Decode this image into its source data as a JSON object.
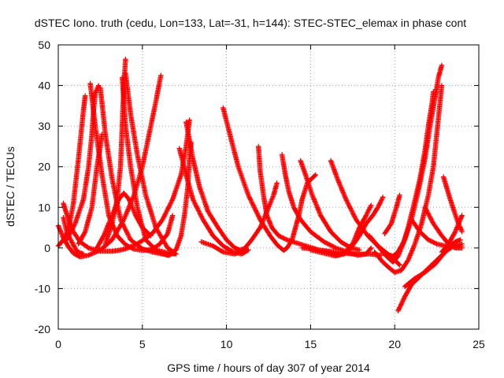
{
  "chart_data": {
    "type": "scatter",
    "title": "dSTEC Iono. truth (cedu, Lon=133, Lat=-31, h=144): STEC-STEC_elemax in phase cont",
    "xlabel": "GPS time / hours of day 307 of year 2014",
    "ylabel": "dSTEC  / TECUs",
    "xlim": [
      0,
      25
    ],
    "ylim": [
      -20,
      50
    ],
    "xticks": [
      "0",
      "5",
      "10",
      "15",
      "20",
      "25"
    ],
    "yticks": [
      "-20",
      "-10",
      "0",
      "10",
      "20",
      "30",
      "40",
      "50"
    ],
    "grid": true,
    "marker": "+",
    "color": "#ff0000",
    "series": [
      {
        "points": [
          [
            0.0,
            5.5
          ],
          [
            0.3,
            2.5
          ],
          [
            0.6,
            0.3
          ],
          [
            0.9,
            -1.3
          ],
          [
            1.3,
            -2.2
          ],
          [
            1.8,
            -1.8
          ],
          [
            2.5,
            -0.5
          ],
          [
            3.2,
            2
          ],
          [
            3.9,
            7
          ],
          [
            4.5,
            13
          ],
          [
            5.0,
            20
          ],
          [
            5.4,
            28
          ],
          [
            5.8,
            36
          ],
          [
            6.1,
            42.5
          ]
        ]
      },
      {
        "points": [
          [
            0.0,
            0.5
          ],
          [
            0.3,
            2
          ],
          [
            0.6,
            4.5
          ],
          [
            0.9,
            11
          ],
          [
            1.2,
            22
          ],
          [
            1.5,
            34
          ],
          [
            1.6,
            37.5
          ]
        ]
      },
      {
        "points": [
          [
            0.3,
            11
          ],
          [
            0.6,
            7
          ],
          [
            0.9,
            4
          ],
          [
            1.3,
            1.5
          ],
          [
            1.8,
            0
          ],
          [
            2.5,
            -0.8
          ],
          [
            3.2,
            -0.8
          ],
          [
            3.6,
            -0.6
          ],
          [
            4.0,
            -0.2
          ],
          [
            4.5,
            0.6
          ],
          [
            5.0,
            1.8
          ],
          [
            5.6,
            3.6
          ],
          [
            6.2,
            7
          ],
          [
            6.8,
            12
          ],
          [
            7.3,
            18
          ],
          [
            7.6,
            25
          ],
          [
            7.8,
            31.5
          ]
        ]
      },
      {
        "points": [
          [
            0.3,
            7.5
          ],
          [
            0.5,
            4
          ],
          [
            0.8,
            1.5
          ],
          [
            1.1,
            -0.8
          ],
          [
            1.5,
            -1.5
          ]
        ]
      },
      {
        "points": [
          [
            0.5,
            2
          ],
          [
            1.0,
            6
          ],
          [
            1.5,
            12
          ],
          [
            1.8,
            20
          ],
          [
            2.0,
            28
          ],
          [
            2.1,
            34
          ],
          [
            2.2,
            38
          ],
          [
            2.4,
            40
          ]
        ]
      },
      {
        "points": [
          [
            1.2,
            1
          ],
          [
            1.6,
            4
          ],
          [
            2.0,
            10
          ],
          [
            2.3,
            20
          ],
          [
            2.5,
            25
          ],
          [
            2.6,
            28
          ]
        ]
      },
      {
        "points": [
          [
            1.9,
            40.5
          ],
          [
            2.2,
            30
          ],
          [
            2.6,
            18
          ],
          [
            3.0,
            8
          ],
          [
            3.5,
            3
          ],
          [
            4.0,
            0.8
          ],
          [
            4.5,
            -0.3
          ],
          [
            5.0,
            -0.6
          ],
          [
            5.5,
            -0.4
          ],
          [
            6.0,
            0.8
          ],
          [
            6.5,
            3.5
          ],
          [
            6.8,
            8
          ]
        ]
      },
      {
        "points": [
          [
            2.5,
            39.5
          ],
          [
            2.8,
            28
          ],
          [
            3.2,
            17
          ],
          [
            3.7,
            7
          ],
          [
            4.3,
            2
          ],
          [
            5.0,
            -0.2
          ],
          [
            5.6,
            -1
          ],
          [
            6.2,
            -1.5
          ],
          [
            6.6,
            -1.8
          ],
          [
            6.9,
            -1
          ]
        ]
      },
      {
        "points": [
          [
            2.3,
            0
          ],
          [
            2.7,
            3
          ],
          [
            3.2,
            8
          ],
          [
            3.6,
            12
          ],
          [
            3.9,
            13.5
          ],
          [
            4.2,
            12
          ],
          [
            4.6,
            8
          ],
          [
            5.0,
            5
          ],
          [
            5.5,
            3
          ]
        ]
      },
      {
        "points": [
          [
            2.8,
            1
          ],
          [
            3.2,
            6
          ],
          [
            3.5,
            12
          ],
          [
            3.7,
            20
          ],
          [
            3.8,
            30
          ],
          [
            3.9,
            40
          ],
          [
            4.0,
            46.5
          ]
        ]
      },
      {
        "points": [
          [
            3.8,
            42
          ],
          [
            4.0,
            30
          ],
          [
            4.3,
            20
          ],
          [
            4.7,
            10
          ],
          [
            5.2,
            2
          ],
          [
            5.8,
            -0.5
          ],
          [
            6.5,
            -1.2
          ],
          [
            6.9,
            -1.5
          ]
        ]
      },
      {
        "points": [
          [
            4.0,
            43
          ],
          [
            4.3,
            33
          ],
          [
            4.7,
            23
          ],
          [
            5.2,
            13
          ],
          [
            5.8,
            5
          ],
          [
            6.5,
            0
          ],
          [
            7.0,
            -1.5
          ]
        ]
      },
      {
        "points": [
          [
            5.6,
            -0.2
          ],
          [
            6.0,
            -1
          ],
          [
            6.5,
            -1.8
          ],
          [
            7.0,
            -0.5
          ],
          [
            7.3,
            3
          ],
          [
            7.5,
            8
          ],
          [
            7.7,
            15
          ],
          [
            7.8,
            22
          ],
          [
            7.9,
            26
          ]
        ]
      },
      {
        "points": [
          [
            7.2,
            24.5
          ],
          [
            7.6,
            18
          ],
          [
            8.0,
            12
          ],
          [
            8.6,
            7
          ],
          [
            9.2,
            3
          ],
          [
            9.8,
            0.5
          ],
          [
            10.4,
            -1
          ],
          [
            10.9,
            -1.5
          ],
          [
            11.3,
            -0.5
          ]
        ]
      },
      {
        "points": [
          [
            7.6,
            31
          ],
          [
            8.0,
            22
          ],
          [
            8.4,
            15
          ],
          [
            8.9,
            9
          ],
          [
            9.5,
            5
          ],
          [
            10.0,
            2
          ],
          [
            10.5,
            0
          ],
          [
            10.8,
            -0.5
          ],
          [
            11.0,
            -0.2
          ]
        ]
      },
      {
        "points": [
          [
            9.8,
            34.5
          ],
          [
            10.2,
            28
          ],
          [
            10.7,
            20
          ],
          [
            11.3,
            13
          ],
          [
            12.0,
            7
          ],
          [
            12.6,
            3
          ],
          [
            13.0,
            0.8
          ],
          [
            13.4,
            -0.6
          ],
          [
            13.6,
            0
          ],
          [
            13.9,
            2
          ],
          [
            14.1,
            5
          ],
          [
            14.3,
            8
          ],
          [
            14.5,
            12
          ],
          [
            14.8,
            16
          ],
          [
            15.3,
            18
          ]
        ]
      },
      {
        "points": [
          [
            8.5,
            1.5
          ],
          [
            9.2,
            0.5
          ],
          [
            9.8,
            -1
          ],
          [
            10.5,
            -1.5
          ],
          [
            11.0,
            -0.5
          ],
          [
            11.5,
            2
          ],
          [
            12.0,
            5
          ],
          [
            12.4,
            9
          ],
          [
            12.8,
            13
          ],
          [
            13.0,
            16
          ]
        ]
      },
      {
        "points": [
          [
            11.9,
            25
          ],
          [
            12.0,
            19
          ],
          [
            12.2,
            13
          ],
          [
            12.4,
            8
          ],
          [
            12.7,
            5
          ],
          [
            13.1,
            3
          ],
          [
            13.6,
            2
          ],
          [
            14.5,
            0.8
          ],
          [
            15.5,
            -0.5
          ],
          [
            16.5,
            -1
          ],
          [
            17.5,
            -1.5
          ],
          [
            18.5,
            -1.5
          ],
          [
            19.2,
            -1.8
          ]
        ]
      },
      {
        "points": [
          [
            13.3,
            23
          ],
          [
            13.5,
            18
          ],
          [
            13.7,
            14
          ],
          [
            14.0,
            10
          ],
          [
            14.4,
            7
          ],
          [
            15.0,
            4
          ],
          [
            15.8,
            1.5
          ],
          [
            16.5,
            0
          ],
          [
            17.2,
            -1
          ],
          [
            17.8,
            -1.8
          ],
          [
            18.3,
            -1.5
          ],
          [
            18.6,
            0
          ]
        ]
      },
      {
        "points": [
          [
            14.4,
            21.5
          ],
          [
            14.7,
            18
          ],
          [
            15.1,
            13
          ],
          [
            15.6,
            8
          ],
          [
            16.2,
            4
          ],
          [
            16.8,
            1.5
          ],
          [
            17.4,
            0
          ],
          [
            17.9,
            -0.5
          ]
        ]
      },
      {
        "points": [
          [
            16.2,
            21.5
          ],
          [
            16.6,
            17
          ],
          [
            17.1,
            12
          ],
          [
            17.7,
            7
          ],
          [
            18.4,
            3
          ],
          [
            19.0,
            0.5
          ],
          [
            19.6,
            -1.5
          ],
          [
            20.0,
            -3
          ],
          [
            20.3,
            -4.2
          ]
        ]
      },
      {
        "points": [
          [
            14.5,
            0
          ],
          [
            15.2,
            -0.3
          ],
          [
            16.0,
            -1
          ],
          [
            16.6,
            -1.8
          ],
          [
            17.0,
            -1.5
          ],
          [
            17.4,
            0
          ],
          [
            17.9,
            3
          ],
          [
            18.3,
            6
          ],
          [
            18.7,
            8
          ],
          [
            19.0,
            10
          ],
          [
            19.3,
            12.5
          ]
        ]
      },
      {
        "points": [
          [
            15.0,
            -0.5
          ],
          [
            15.8,
            -1.3
          ],
          [
            16.5,
            -2
          ],
          [
            17.0,
            -1.2
          ],
          [
            17.5,
            1
          ],
          [
            17.9,
            5
          ],
          [
            18.3,
            8
          ],
          [
            18.6,
            10.5
          ]
        ]
      },
      {
        "points": [
          [
            18.5,
            3
          ],
          [
            19.0,
            0.5
          ],
          [
            19.5,
            -2
          ],
          [
            19.9,
            -3.5
          ],
          [
            20.2,
            -2
          ],
          [
            20.5,
            1
          ],
          [
            20.8,
            5
          ],
          [
            21.1,
            10
          ],
          [
            21.5,
            17
          ],
          [
            21.8,
            24
          ],
          [
            22.0,
            30
          ],
          [
            22.2,
            35
          ],
          [
            22.3,
            38.5
          ]
        ]
      },
      {
        "points": [
          [
            18.8,
            -1
          ],
          [
            19.3,
            -3.5
          ],
          [
            19.7,
            -5
          ],
          [
            20.0,
            -6
          ],
          [
            20.4,
            -5.5
          ],
          [
            20.8,
            -3
          ],
          [
            21.2,
            1
          ],
          [
            21.6,
            6
          ],
          [
            22.0,
            13
          ],
          [
            22.3,
            20
          ],
          [
            22.5,
            28
          ],
          [
            22.7,
            36
          ],
          [
            22.8,
            40
          ]
        ]
      },
      {
        "points": [
          [
            19.5,
            -1.5
          ],
          [
            19.9,
            -2
          ],
          [
            20.2,
            -1
          ],
          [
            20.6,
            2
          ],
          [
            21.0,
            7
          ],
          [
            21.4,
            14
          ],
          [
            21.8,
            22
          ],
          [
            22.1,
            30
          ],
          [
            22.4,
            37
          ],
          [
            22.6,
            42
          ],
          [
            22.8,
            45
          ]
        ]
      },
      {
        "points": [
          [
            19.4,
            3.5
          ],
          [
            19.8,
            6
          ],
          [
            20.1,
            10
          ],
          [
            20.3,
            13
          ]
        ]
      },
      {
        "points": [
          [
            20.2,
            -15.5
          ],
          [
            20.6,
            -12
          ],
          [
            21.0,
            -9
          ],
          [
            21.5,
            -7
          ],
          [
            22.0,
            -5
          ],
          [
            22.5,
            -3
          ],
          [
            23.0,
            -1
          ],
          [
            23.5,
            0.5
          ],
          [
            24.0,
            1
          ]
        ]
      },
      {
        "points": [
          [
            20.6,
            -9.5
          ],
          [
            21.2,
            -7.5
          ],
          [
            21.8,
            -6
          ],
          [
            22.4,
            -4
          ],
          [
            22.9,
            -1.5
          ],
          [
            23.3,
            0.5
          ],
          [
            23.6,
            1.5
          ],
          [
            23.9,
            2
          ]
        ]
      },
      {
        "points": [
          [
            21.0,
            7
          ],
          [
            21.5,
            4
          ],
          [
            22.0,
            2
          ],
          [
            22.5,
            1
          ],
          [
            23.0,
            0.5
          ],
          [
            23.5,
            0.5
          ],
          [
            24.0,
            0.5
          ]
        ]
      },
      {
        "points": [
          [
            21.8,
            10
          ],
          [
            22.3,
            6
          ],
          [
            22.8,
            3
          ],
          [
            23.2,
            1
          ],
          [
            23.6,
            0
          ],
          [
            24.0,
            0
          ]
        ]
      },
      {
        "points": [
          [
            22.9,
            17.5
          ],
          [
            23.3,
            12
          ],
          [
            23.7,
            7
          ],
          [
            24.0,
            4
          ]
        ]
      },
      {
        "points": [
          [
            22.8,
            -1
          ],
          [
            23.2,
            1
          ],
          [
            23.6,
            4
          ],
          [
            23.9,
            7
          ],
          [
            24.0,
            8
          ]
        ]
      }
    ]
  }
}
